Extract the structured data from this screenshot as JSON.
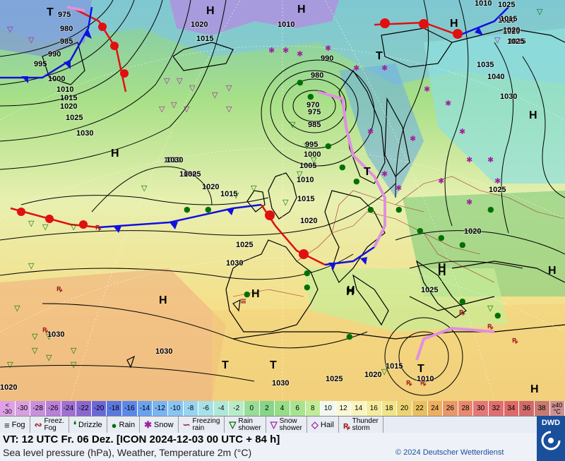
{
  "map": {
    "pressure_labels": [
      "975",
      "980",
      "985",
      "990",
      "995",
      "1000",
      "1010",
      "1015",
      "1020",
      "1025",
      "1030",
      "1010",
      "1015",
      "1020",
      "990",
      "980",
      "970",
      "975",
      "985",
      "995",
      "1000",
      "1005",
      "1010",
      "1015",
      "1020",
      "1025",
      "1030",
      "1020",
      "1015",
      "1010",
      "1030",
      "1035",
      "1040",
      "1030",
      "1025",
      "1020",
      "1025",
      "1030",
      "1030",
      "1020",
      "1015",
      "1010",
      "1030",
      "1025",
      "1020",
      "1025",
      "1020",
      "1020",
      "1015",
      "1025",
      "1030",
      "1010",
      "1015",
      "1020",
      "1025"
    ],
    "centers": [
      "H",
      "H",
      "T",
      "H",
      "H",
      "T",
      "H",
      "T",
      "T",
      "H",
      "H",
      "H",
      "H",
      "T",
      "H",
      "H",
      "T",
      "H",
      "H"
    ]
  },
  "scale": {
    "values": [
      "<\n-30",
      "-30",
      "-28",
      "-26",
      "-24",
      "-22",
      "-20",
      "-18",
      "-16",
      "-14",
      "-12",
      "-10",
      "-8",
      "-6",
      "-4",
      "-2",
      "0",
      "2",
      "4",
      "6",
      "8",
      "10",
      "12",
      "14",
      "16",
      "18",
      "20",
      "22",
      "24",
      "26",
      "28",
      "30",
      "32",
      "34",
      "36",
      "38",
      "≥40\n°C"
    ],
    "colors": [
      "#e0a0e8",
      "#d8a0e0",
      "#c890dc",
      "#b880d8",
      "#a070d4",
      "#8868d0",
      "#6a68d8",
      "#5a78e0",
      "#5a88e8",
      "#6aa0f0",
      "#7ab4f4",
      "#88c4f4",
      "#98d4f0",
      "#a8e0e8",
      "#b0e8d8",
      "#b8ecc8",
      "#98dc98",
      "#88d488",
      "#98dc88",
      "#a8e490",
      "#c0ec98",
      "#f0f8f0",
      "#f8f8d8",
      "#f8f4c0",
      "#f4ec9c",
      "#f0e488",
      "#ecd470",
      "#e8c060",
      "#ecae60",
      "#e89868",
      "#e88870",
      "#e47878",
      "#e06e70",
      "#dc6a68",
      "#d06a6a",
      "#c87a70",
      "#d09090"
    ]
  },
  "legend": {
    "items": [
      {
        "symbol": "≡",
        "label": "Fog"
      },
      {
        "symbol": "∾",
        "label": "Freez.\nFog"
      },
      {
        "symbol": "❛",
        "label": "Drizzle"
      },
      {
        "symbol": "●",
        "label": "Rain"
      },
      {
        "symbol": "✱",
        "label": "Snow"
      },
      {
        "symbol": "∽",
        "label": "Freezing\nrain"
      },
      {
        "symbol": "▽",
        "label": "Rain\nshower"
      },
      {
        "symbol": "▽",
        "label": "Snow\nshower"
      },
      {
        "symbol": "◇",
        "label": "Hail"
      },
      {
        "symbol": "ꝶ",
        "label": "Thunder\nstorm"
      }
    ]
  },
  "info": {
    "valid_time": "VT: 12 UTC Fr.  06 Dez. [ICON 2024-12-03  00 UTC + 84 h]",
    "description": "Sea level pressure (hPa), Weather, Temperature 2m (°C)",
    "copyright": "© 2024 Deutscher Wetterdienst"
  },
  "logo": {
    "text": "DWD"
  },
  "colors": {
    "warm_front": "#e01010",
    "cold_front": "#1010e0",
    "occlusion": "#e090e0"
  }
}
